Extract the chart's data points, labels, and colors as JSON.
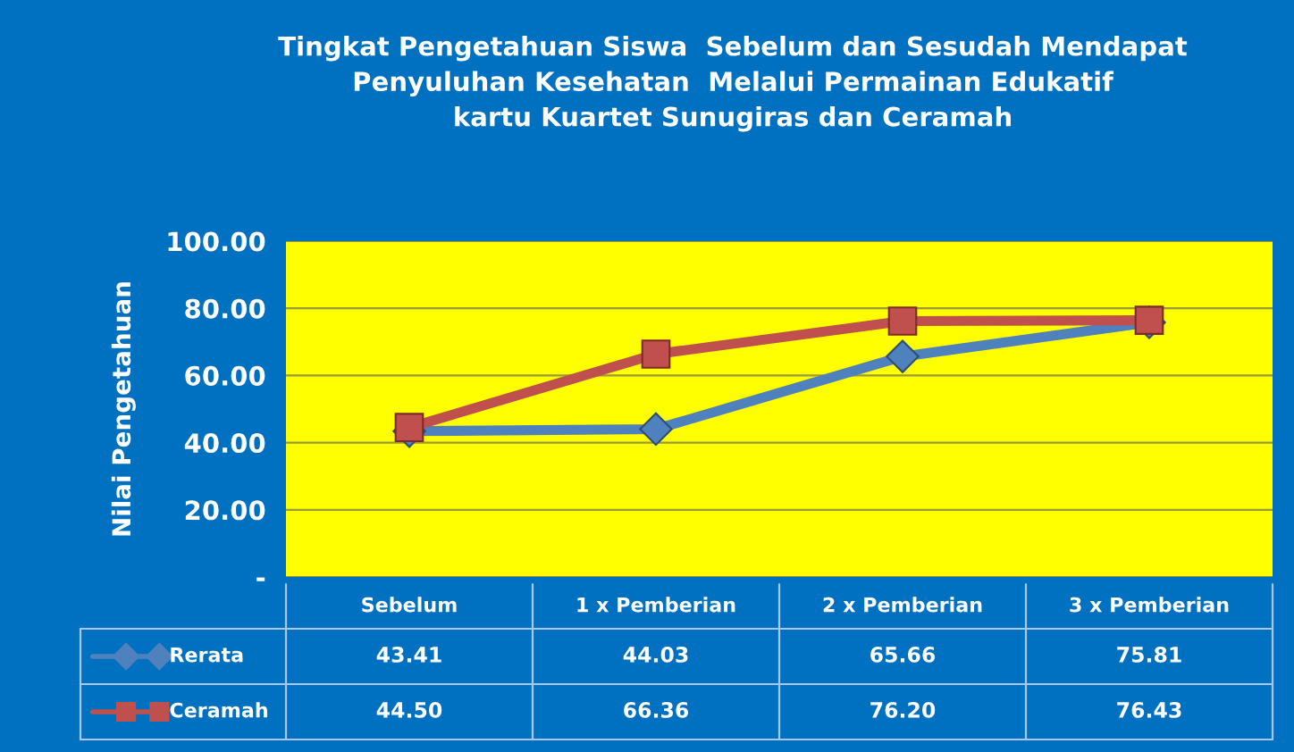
{
  "chart_data": {
    "type": "line",
    "title": "Tingkat Pengetahuan Siswa  Sebelum dan Sesudah Mendapat\nPenyuluhan Kesehatan  Melalui Permainan Edukatif\nkartu Kuartet Sunugiras dan Ceramah",
    "ylabel": "Nilai Pengetahuan",
    "categories": [
      "Sebelum",
      "1 x Pemberian",
      "2 x Pemberian",
      "3 x Pemberian"
    ],
    "series": [
      {
        "name": "Rerata",
        "color": "#4f81bd",
        "marker": "diamond",
        "values": [
          43.41,
          44.03,
          65.66,
          75.81
        ],
        "value_labels": [
          "43.41",
          "44.03",
          "65.66",
          "75.81"
        ]
      },
      {
        "name": "Ceramah",
        "color": "#c0504d",
        "marker": "square",
        "values": [
          44.5,
          66.36,
          76.2,
          76.43
        ],
        "value_labels": [
          "44.50",
          "66.36",
          "76.20",
          "76.43"
        ]
      }
    ],
    "ylim": [
      0,
      100
    ],
    "yticks": [
      {
        "value": 0,
        "label": "-"
      },
      {
        "value": 20,
        "label": "20.00"
      },
      {
        "value": 40,
        "label": "40.00"
      },
      {
        "value": 60,
        "label": "60.00"
      },
      {
        "value": 80,
        "label": "80.00"
      },
      {
        "value": 100,
        "label": "100.00"
      }
    ],
    "grid": "y",
    "legend": "bottom left",
    "line_style": "solid"
  }
}
